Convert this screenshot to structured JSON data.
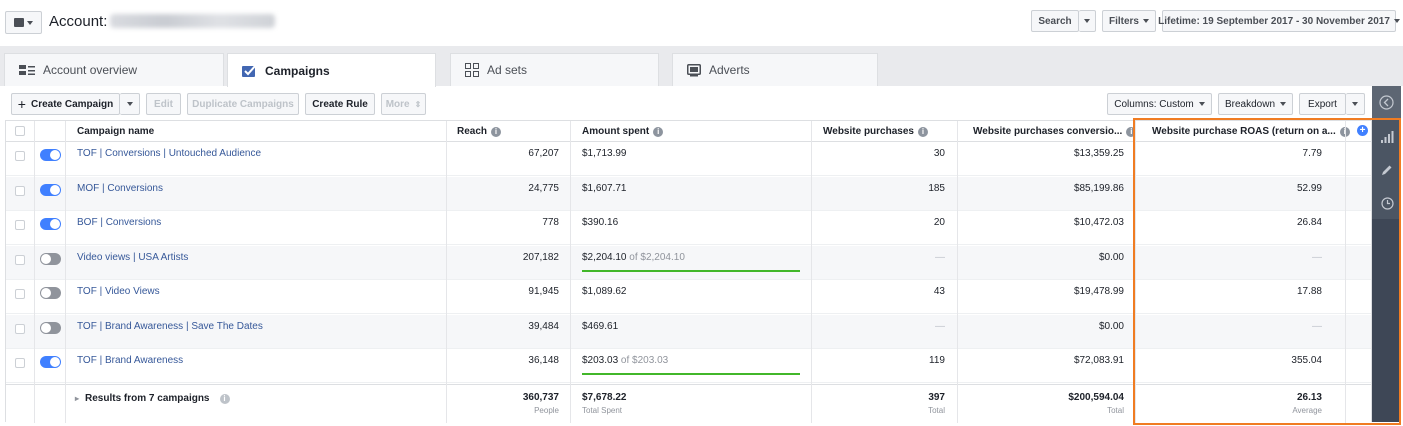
{
  "topbar": {
    "account_label": "Account",
    "account_colon": ":",
    "search_label": "Search",
    "filters_label": "Filters",
    "date_range": "Lifetime: 19 September 2017 - 30 November 2017"
  },
  "tabs": [
    {
      "label": "Account overview",
      "icon": "overview-icon"
    },
    {
      "label": "Campaigns",
      "icon": "checkbox-icon"
    },
    {
      "label": "Ad sets",
      "icon": "grid-icon"
    },
    {
      "label": "Adverts",
      "icon": "advert-icon"
    }
  ],
  "toolbar": {
    "create_campaign": "Create Campaign",
    "edit": "Edit",
    "duplicate": "Duplicate Campaigns",
    "create_rule": "Create Rule",
    "more": "More",
    "columns": "Columns: Custom",
    "breakdown": "Breakdown",
    "export": "Export"
  },
  "columns": {
    "name": "Campaign name",
    "reach": "Reach",
    "amount": "Amount spent",
    "purchases": "Website purchases",
    "conversion": "Website purchases conversio...",
    "roas": "Website purchase ROAS (return on a..."
  },
  "rows": [
    {
      "name": "TOF | Conversions | Untouched Audience",
      "active": true,
      "reach": "67,207",
      "amount": "$1,713.99",
      "of": "",
      "purchases": "30",
      "conversion": "$13,359.25",
      "roas": "7.79"
    },
    {
      "name": "MOF | Conversions",
      "active": true,
      "reach": "24,775",
      "amount": "$1,607.71",
      "of": "",
      "purchases": "185",
      "conversion": "$85,199.86",
      "roas": "52.99"
    },
    {
      "name": "BOF | Conversions",
      "active": true,
      "reach": "778",
      "amount": "$390.16",
      "of": "",
      "purchases": "20",
      "conversion": "$10,472.03",
      "roas": "26.84"
    },
    {
      "name": "Video views | USA Artists",
      "active": false,
      "reach": "207,182",
      "amount": "$2,204.10",
      "of": " of $2,204.10",
      "purchases": "—",
      "conversion": "$0.00",
      "roas": "—"
    },
    {
      "name": "TOF | Video Views",
      "active": false,
      "reach": "91,945",
      "amount": "$1,089.62",
      "of": "",
      "purchases": "43",
      "conversion": "$19,478.99",
      "roas": "17.88"
    },
    {
      "name": "TOF | Brand Awareness | Save The Dates",
      "active": false,
      "reach": "39,484",
      "amount": "$469.61",
      "of": "",
      "purchases": "—",
      "conversion": "$0.00",
      "roas": "—"
    },
    {
      "name": "TOF | Brand Awareness",
      "active": true,
      "reach": "36,148",
      "amount": "$203.03",
      "of": " of $203.03",
      "purchases": "119",
      "conversion": "$72,083.91",
      "roas": "355.04"
    }
  ],
  "footer": {
    "label": "Results from 7 campaigns",
    "reach": "360,737",
    "reach_sub": "People",
    "amount": "$7,678.22",
    "amount_sub": "Total Spent",
    "purchases": "397",
    "purchases_sub": "Total",
    "conversion": "$200,594.04",
    "conversion_sub": "Total",
    "roas": "26.13",
    "roas_sub": "Average"
  },
  "colors": {
    "accent": "#4080ff",
    "highlight": "#f07c22",
    "progress": "#42b72a",
    "link": "#365899"
  }
}
